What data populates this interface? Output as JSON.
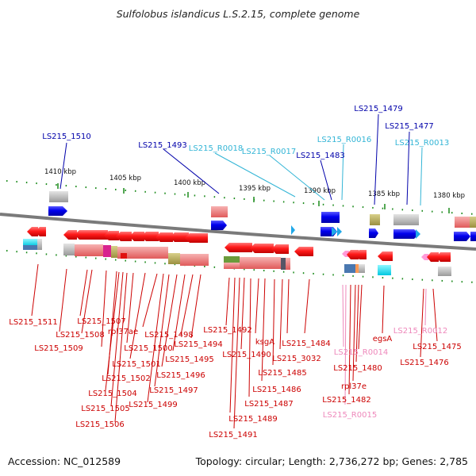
{
  "title": "Sulfolobus islandicus L.S.2.15, complete genome",
  "accession": "Accession: NC_012589",
  "summary": "Topology: circular; Length: 2,736,272 bp; Genes: 2,785",
  "colors": {
    "gene_label": "#cc0000",
    "top_label": "#0000aa",
    "rna_label": "#33b5d6",
    "pink_label": "#ee88bb",
    "backbone": "#808080",
    "tick": "#1a8a1a"
  },
  "scale_ticks": [
    "1410 kbp",
    "1405 kbp",
    "1400 kbp",
    "1395 kbp",
    "1390 kbp",
    "1385 kbp",
    "1380 kbp"
  ],
  "top_labels": [
    {
      "text": "LS215_1510",
      "kind": "blue"
    },
    {
      "text": "LS215_1493",
      "kind": "blue"
    },
    {
      "text": "LS215_R0018",
      "kind": "rna"
    },
    {
      "text": "LS215_R0017",
      "kind": "rna"
    },
    {
      "text": "LS215_R0016",
      "kind": "rna"
    },
    {
      "text": "LS215_1483",
      "kind": "blue"
    },
    {
      "text": "LS215_1479",
      "kind": "blue"
    },
    {
      "text": "LS215_1477",
      "kind": "blue"
    },
    {
      "text": "LS215_R0013",
      "kind": "rna"
    }
  ],
  "bottom_labels": [
    {
      "text": "LS215_1511",
      "kind": "red"
    },
    {
      "text": "LS215_1508",
      "kind": "red"
    },
    {
      "text": "LS215_1509",
      "kind": "red"
    },
    {
      "text": "LS215_1507",
      "kind": "red"
    },
    {
      "text": "rpl37ae",
      "kind": "red"
    },
    {
      "text": "LS215_1498",
      "kind": "red"
    },
    {
      "text": "LS215_1494",
      "kind": "red"
    },
    {
      "text": "LS215_1500",
      "kind": "red"
    },
    {
      "text": "LS215_1495",
      "kind": "red"
    },
    {
      "text": "LS215_1501",
      "kind": "red"
    },
    {
      "text": "LS215_1496",
      "kind": "red"
    },
    {
      "text": "LS215_1502",
      "kind": "red"
    },
    {
      "text": "LS215_1497",
      "kind": "red"
    },
    {
      "text": "LS215_1504",
      "kind": "red"
    },
    {
      "text": "LS215_1499",
      "kind": "red"
    },
    {
      "text": "LS215_1505",
      "kind": "red"
    },
    {
      "text": "LS215_1506",
      "kind": "red"
    },
    {
      "text": "LS215_1492",
      "kind": "red"
    },
    {
      "text": "ksgA",
      "kind": "red"
    },
    {
      "text": "LS215_1490",
      "kind": "red"
    },
    {
      "text": "LS215_1484",
      "kind": "red"
    },
    {
      "text": "LS215_3032",
      "kind": "red"
    },
    {
      "text": "LS215_1485",
      "kind": "red"
    },
    {
      "text": "LS215_1486",
      "kind": "red"
    },
    {
      "text": "LS215_1487",
      "kind": "red"
    },
    {
      "text": "LS215_1489",
      "kind": "red"
    },
    {
      "text": "LS215_1491",
      "kind": "red"
    },
    {
      "text": "LS215_R0014",
      "kind": "pink"
    },
    {
      "text": "egsA",
      "kind": "red"
    },
    {
      "text": "LS215_1480",
      "kind": "red"
    },
    {
      "text": "rpl37e",
      "kind": "red"
    },
    {
      "text": "LS215_1482",
      "kind": "red"
    },
    {
      "text": "LS215_R0015",
      "kind": "pink"
    },
    {
      "text": "LS215_R0012",
      "kind": "pink"
    },
    {
      "text": "LS215_1475",
      "kind": "red"
    },
    {
      "text": "LS215_1476",
      "kind": "red"
    }
  ]
}
